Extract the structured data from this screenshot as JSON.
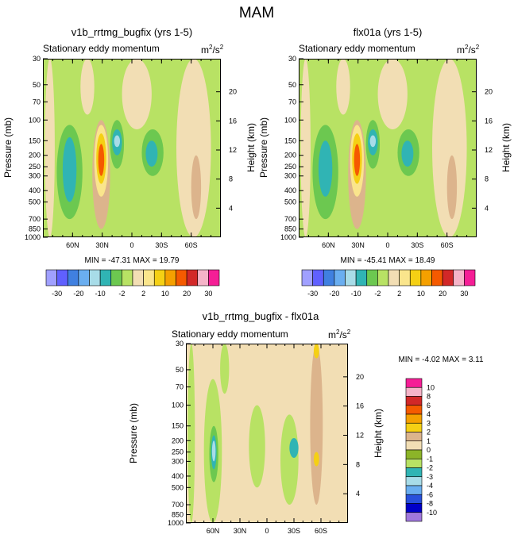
{
  "page_title": "MAM",
  "colors": {
    "axis": "#000000",
    "background": "#ffffff"
  },
  "panels": [
    {
      "title": "v1b_rrtmg_bugfix (yrs 1-5)",
      "subtitle": "Stationary eddy momentum",
      "units_base": "m",
      "units_exp1": "2",
      "units_mid": "/s",
      "units_exp2": "2",
      "ylabel": "Pressure (mb)",
      "ylabel_right": "Height (km)",
      "stats": "MIN = -47.31  MAX =  19.79"
    },
    {
      "title": "flx01a (yrs 1-5)",
      "subtitle": "Stationary eddy momentum",
      "units_base": "m",
      "units_exp1": "2",
      "units_mid": "/s",
      "units_exp2": "2",
      "ylabel": "Pressure (mb)",
      "ylabel_right": "Height (km)",
      "stats": "MIN = -45.41  MAX =  18.49"
    },
    {
      "title": "v1b_rrtmg_bugfix - flx01a",
      "subtitle": "Stationary eddy momentum",
      "units_base": "m",
      "units_exp1": "2",
      "units_mid": "/s",
      "units_exp2": "2",
      "ylabel": "Pressure (mb)",
      "ylabel_right": "Height (km)",
      "stats": "MIN =  -4.02  MAX =   3.11"
    }
  ],
  "chart_data": {
    "type": "heatmap",
    "title": "MAM",
    "variable": "Stationary eddy momentum",
    "units": "m2/s2",
    "x_ticks": [
      "60N",
      "30N",
      "0",
      "30S",
      "60S"
    ],
    "x_tick_values": [
      60,
      30,
      0,
      -30,
      -60
    ],
    "xlim": [
      90,
      -90
    ],
    "pressure_ticks": [
      "30",
      "50",
      "70",
      "100",
      "150",
      "200",
      "250",
      "300",
      "400",
      "500",
      "700",
      "850",
      "1000"
    ],
    "pressure_values": [
      30,
      50,
      70,
      100,
      150,
      200,
      250,
      300,
      400,
      500,
      700,
      850,
      1000
    ],
    "ylim_pressure": [
      30,
      1000
    ],
    "height_ticks": [
      "20",
      "16",
      "12",
      "8",
      "4"
    ],
    "height_values": [
      20,
      16,
      12,
      8,
      4
    ],
    "main_levels": [
      "-30",
      "-20",
      "-10",
      "-2",
      "2",
      "10",
      "20",
      "30"
    ],
    "main_colors": [
      "#a0a0ff",
      "#6060ff",
      "#4080e0",
      "#6aaef0",
      "#a8dce8",
      "#30b4b4",
      "#6cc850",
      "#b8e264",
      "#f2deb4",
      "#fae58c",
      "#f5d014",
      "#f5a000",
      "#f55a00",
      "#d22828",
      "#f5b4c8",
      "#f51e96"
    ],
    "diff_levels": [
      "10",
      "8",
      "6",
      "4",
      "3",
      "2",
      "1",
      "0",
      "-1",
      "-2",
      "-3",
      "-4",
      "-6",
      "-8",
      "-10"
    ],
    "diff_colors": [
      "#f51e96",
      "#f5b4c8",
      "#d22828",
      "#f55a00",
      "#f5a000",
      "#f5d014",
      "#dcb48c",
      "#f2deb4",
      "#8cb428",
      "#b8e264",
      "#30b4b4",
      "#a8dce8",
      "#6aaef0",
      "#2850dc",
      "#0000c8",
      "#a078dc"
    ],
    "fields": [
      {
        "name": "v1b_rrtmg_bugfix (yrs 1-5)",
        "min": -47.31,
        "max": 19.79,
        "background": "#b8e264",
        "features": [
          {
            "lat": 88,
            "lat2": 78,
            "p1": 30,
            "p2": 1000,
            "color": "#f2deb4"
          },
          {
            "lat": 52,
            "lat2": 38,
            "p1": 30,
            "p2": 90,
            "color": "#f2deb4"
          },
          {
            "lat": 10,
            "lat2": -20,
            "p1": 30,
            "p2": 120,
            "color": "#f2deb4"
          },
          {
            "lat": -45,
            "lat2": -80,
            "p1": 30,
            "p2": 1000,
            "color": "#f2deb4"
          },
          {
            "lat": -60,
            "lat2": -70,
            "p1": 200,
            "p2": 700,
            "color": "#dcb48c"
          },
          {
            "lat": 76,
            "lat2": 50,
            "p1": 110,
            "p2": 700,
            "color": "#6cc850"
          },
          {
            "lat": 70,
            "lat2": 56,
            "p1": 140,
            "p2": 500,
            "color": "#30b4b4"
          },
          {
            "lat": 40,
            "lat2": 22,
            "p1": 100,
            "p2": 850,
            "color": "#dcb48c"
          },
          {
            "lat": 38,
            "lat2": 24,
            "p1": 110,
            "p2": 450,
            "color": "#fae58c"
          },
          {
            "lat": 36,
            "lat2": 26,
            "p1": 130,
            "p2": 350,
            "color": "#f5d014"
          },
          {
            "lat": 34,
            "lat2": 28,
            "p1": 160,
            "p2": 300,
            "color": "#f55a00"
          },
          {
            "lat": 22,
            "lat2": 8,
            "p1": 100,
            "p2": 260,
            "color": "#6cc850"
          },
          {
            "lat": 20,
            "lat2": 10,
            "p1": 120,
            "p2": 200,
            "color": "#30b4b4"
          },
          {
            "lat": 18,
            "lat2": 12,
            "p1": 135,
            "p2": 170,
            "color": "#a8dce8"
          },
          {
            "lat": -10,
            "lat2": -32,
            "p1": 120,
            "p2": 300,
            "color": "#6cc850"
          },
          {
            "lat": -14,
            "lat2": -26,
            "p1": 150,
            "p2": 250,
            "color": "#30b4b4"
          }
        ]
      },
      {
        "name": "flx01a (yrs 1-5)",
        "min": -45.41,
        "max": 18.49,
        "background": "#b8e264",
        "features": [
          {
            "lat": 88,
            "lat2": 78,
            "p1": 30,
            "p2": 1000,
            "color": "#f2deb4"
          },
          {
            "lat": 52,
            "lat2": 38,
            "p1": 30,
            "p2": 90,
            "color": "#f2deb4"
          },
          {
            "lat": 10,
            "lat2": -20,
            "p1": 30,
            "p2": 120,
            "color": "#f2deb4"
          },
          {
            "lat": -45,
            "lat2": -80,
            "p1": 30,
            "p2": 1000,
            "color": "#f2deb4"
          },
          {
            "lat": -60,
            "lat2": -70,
            "p1": 200,
            "p2": 700,
            "color": "#dcb48c"
          },
          {
            "lat": 76,
            "lat2": 50,
            "p1": 110,
            "p2": 700,
            "color": "#6cc850"
          },
          {
            "lat": 70,
            "lat2": 56,
            "p1": 150,
            "p2": 450,
            "color": "#30b4b4"
          },
          {
            "lat": 40,
            "lat2": 22,
            "p1": 100,
            "p2": 850,
            "color": "#dcb48c"
          },
          {
            "lat": 38,
            "lat2": 24,
            "p1": 110,
            "p2": 450,
            "color": "#fae58c"
          },
          {
            "lat": 36,
            "lat2": 26,
            "p1": 130,
            "p2": 350,
            "color": "#f5d014"
          },
          {
            "lat": 34,
            "lat2": 28,
            "p1": 160,
            "p2": 300,
            "color": "#f55a00"
          },
          {
            "lat": 22,
            "lat2": 8,
            "p1": 100,
            "p2": 260,
            "color": "#6cc850"
          },
          {
            "lat": 20,
            "lat2": 10,
            "p1": 120,
            "p2": 200,
            "color": "#30b4b4"
          },
          {
            "lat": 18,
            "lat2": 12,
            "p1": 135,
            "p2": 170,
            "color": "#a8dce8"
          },
          {
            "lat": -10,
            "lat2": -32,
            "p1": 120,
            "p2": 300,
            "color": "#6cc850"
          },
          {
            "lat": -14,
            "lat2": -26,
            "p1": 150,
            "p2": 250,
            "color": "#30b4b4"
          }
        ]
      },
      {
        "name": "v1b_rrtmg_bugfix - flx01a",
        "min": -4.02,
        "max": 3.11,
        "background": "#f2deb4",
        "features": [
          {
            "lat": 88,
            "lat2": 80,
            "p1": 30,
            "p2": 1000,
            "color": "#b8e264"
          },
          {
            "lat": 70,
            "lat2": 50,
            "p1": 60,
            "p2": 1000,
            "color": "#b8e264"
          },
          {
            "lat": 64,
            "lat2": 54,
            "p1": 150,
            "p2": 450,
            "color": "#6cc850"
          },
          {
            "lat": 62,
            "lat2": 56,
            "p1": 180,
            "p2": 350,
            "color": "#30b4b4"
          },
          {
            "lat": 61,
            "lat2": 57,
            "p1": 200,
            "p2": 300,
            "color": "#a8dce8"
          },
          {
            "lat": 20,
            "lat2": 2,
            "p1": 100,
            "p2": 500,
            "color": "#b8e264"
          },
          {
            "lat": -15,
            "lat2": -35,
            "p1": 120,
            "p2": 700,
            "color": "#b8e264"
          },
          {
            "lat": -25,
            "lat2": -35,
            "p1": 190,
            "p2": 280,
            "color": "#30b4b4"
          },
          {
            "lat": -48,
            "lat2": -62,
            "p1": 30,
            "p2": 700,
            "color": "#dcb48c"
          },
          {
            "lat": -52,
            "lat2": -58,
            "p1": 250,
            "p2": 330,
            "color": "#f5d014"
          },
          {
            "lat": -52,
            "lat2": -58,
            "p1": 30,
            "p2": 40,
            "color": "#f5d014"
          },
          {
            "lat": 52,
            "lat2": 42,
            "p1": 30,
            "p2": 80,
            "color": "#b8e264"
          }
        ]
      }
    ]
  }
}
